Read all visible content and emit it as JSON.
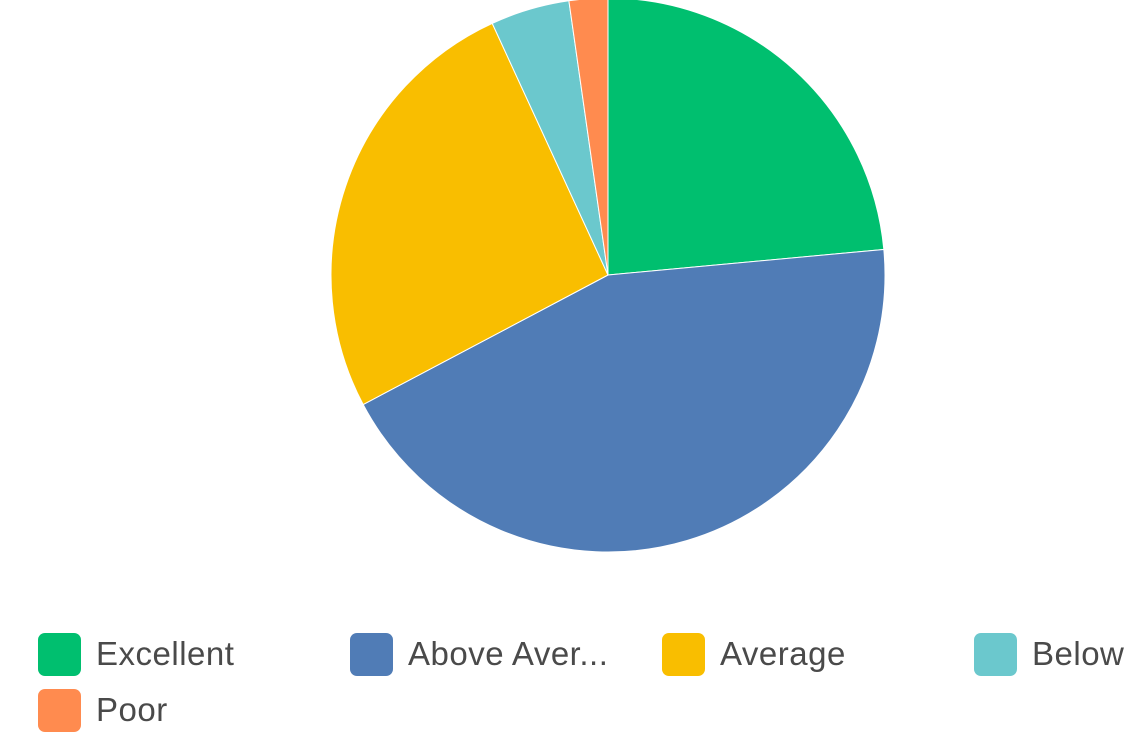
{
  "chart_data": {
    "type": "pie",
    "slices": [
      {
        "label": "Excellent",
        "value": 24.0,
        "color": "#00BF6F"
      },
      {
        "label": "Above Aver...",
        "value": 44.6,
        "color": "#507CB6"
      },
      {
        "label": "Average",
        "value": 26.4,
        "color": "#F9BE00"
      },
      {
        "label": "Below",
        "value": 4.7,
        "color": "#6BC8CD"
      },
      {
        "label": "Poor",
        "value": 2.3,
        "color": "#FF8B4F"
      }
    ],
    "legend_position": "bottom",
    "start_angle": "12 o'clock",
    "direction": "clockwise"
  }
}
